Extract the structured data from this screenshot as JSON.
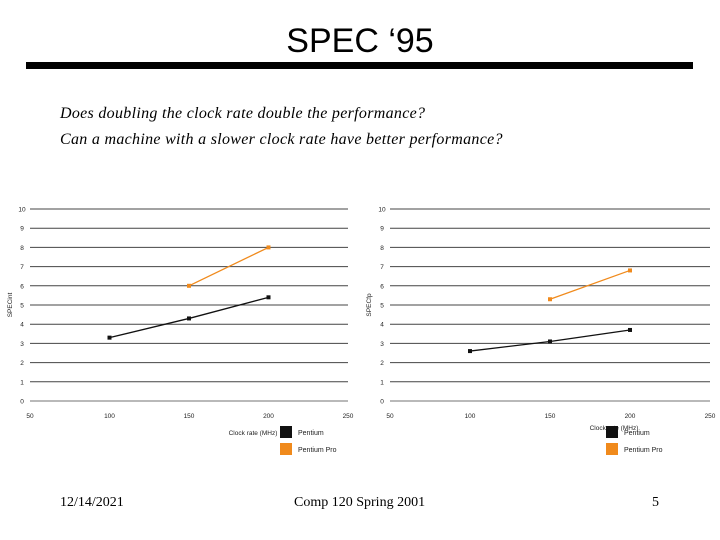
{
  "slide": {
    "title": "SPEC ‘95",
    "questions": [
      "Does doubling the clock rate double the performance?",
      "Can a machine with a slower clock rate have better performance?"
    ],
    "footer": {
      "date": "12/14/2021",
      "course": "Comp 120 Spring 2001",
      "page": "5"
    }
  },
  "colors": {
    "pentium": "#111111",
    "pentium_pro": "#f08a1c",
    "grid": "#444444"
  },
  "chart_data": [
    {
      "type": "line",
      "title": "",
      "xlabel": "Clock rate (MHz)",
      "ylabel": "SPECint",
      "xlim": [
        50,
        250
      ],
      "ylim": [
        0,
        10
      ],
      "x_ticks": [
        50,
        100,
        150,
        200,
        250
      ],
      "y_ticks": [
        0,
        1,
        2,
        3,
        4,
        5,
        6,
        7,
        8,
        9,
        10
      ],
      "grid": "horizontal",
      "legend": "bottom-right",
      "series": [
        {
          "name": "Pentium",
          "color": "#111111",
          "points": [
            [
              100,
              3.3
            ],
            [
              150,
              4.3
            ],
            [
              200,
              5.4
            ]
          ]
        },
        {
          "name": "Pentium Pro",
          "color": "#f08a1c",
          "points": [
            [
              150,
              6.0
            ],
            [
              200,
              8.0
            ]
          ]
        }
      ]
    },
    {
      "type": "line",
      "title": "",
      "xlabel": "Clock rate (MHz)",
      "ylabel": "SPECfp",
      "xlim": [
        50,
        250
      ],
      "ylim": [
        0,
        10
      ],
      "x_ticks": [
        50,
        100,
        150,
        200,
        250
      ],
      "y_ticks": [
        0,
        1,
        2,
        3,
        4,
        5,
        6,
        7,
        8,
        9,
        10
      ],
      "grid": "horizontal",
      "legend": "bottom-right",
      "series": [
        {
          "name": "Pentium",
          "color": "#111111",
          "points": [
            [
              100,
              2.6
            ],
            [
              150,
              3.1
            ],
            [
              200,
              3.7
            ]
          ]
        },
        {
          "name": "Pentium Pro",
          "color": "#f08a1c",
          "points": [
            [
              150,
              5.3
            ],
            [
              200,
              6.8
            ]
          ]
        }
      ]
    }
  ]
}
